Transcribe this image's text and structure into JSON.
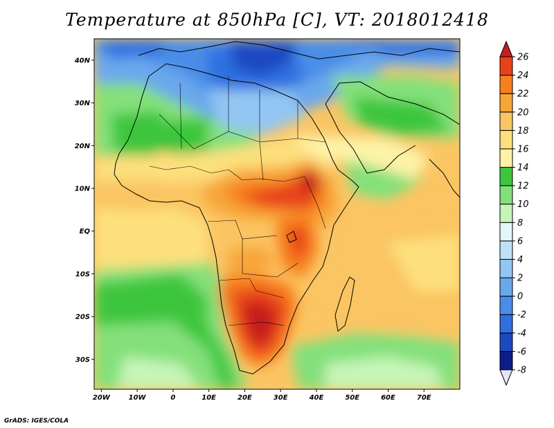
{
  "title": "Temperature at 850hPa [C], VT: 2018012418",
  "footer": "GrADS: IGES/COLA",
  "map": {
    "lon_range": [
      -22,
      80
    ],
    "lat_range": [
      -37,
      45
    ],
    "lon_ticks": [
      {
        "value": -20,
        "label": "20W"
      },
      {
        "value": -10,
        "label": "10W"
      },
      {
        "value": 0,
        "label": "0"
      },
      {
        "value": 10,
        "label": "10E"
      },
      {
        "value": 20,
        "label": "20E"
      },
      {
        "value": 30,
        "label": "30E"
      },
      {
        "value": 40,
        "label": "40E"
      },
      {
        "value": 50,
        "label": "50E"
      },
      {
        "value": 60,
        "label": "60E"
      },
      {
        "value": 70,
        "label": "70E"
      }
    ],
    "lat_ticks": [
      {
        "value": 40,
        "label": "40N"
      },
      {
        "value": 30,
        "label": "30N"
      },
      {
        "value": 20,
        "label": "20N"
      },
      {
        "value": 10,
        "label": "10N"
      },
      {
        "value": 0,
        "label": "EQ"
      },
      {
        "value": -10,
        "label": "10S"
      },
      {
        "value": -20,
        "label": "20S"
      },
      {
        "value": -30,
        "label": "30S"
      }
    ]
  },
  "colorbar": {
    "levels": [
      -8,
      -6,
      -4,
      -2,
      0,
      2,
      4,
      6,
      8,
      10,
      12,
      14,
      16,
      18,
      20,
      22,
      24,
      26
    ],
    "labels": [
      "-8",
      "-6",
      "-4",
      "-2",
      "0",
      "2",
      "4",
      "6",
      "8",
      "10",
      "12",
      "14",
      "16",
      "18",
      "20",
      "22",
      "24",
      "26"
    ],
    "colors": [
      "#e6e6fa",
      "#0c1c8a",
      "#1a49c2",
      "#2f6fe0",
      "#4a8de8",
      "#6aa8ec",
      "#93c6f2",
      "#bfe0f5",
      "#e4f6f8",
      "#c6f5b8",
      "#84e07a",
      "#3dc63c",
      "#fdf3a8",
      "#fde07d",
      "#fbc563",
      "#f8a63a",
      "#f77f1c",
      "#e8421c",
      "#c61e1e"
    ]
  }
}
